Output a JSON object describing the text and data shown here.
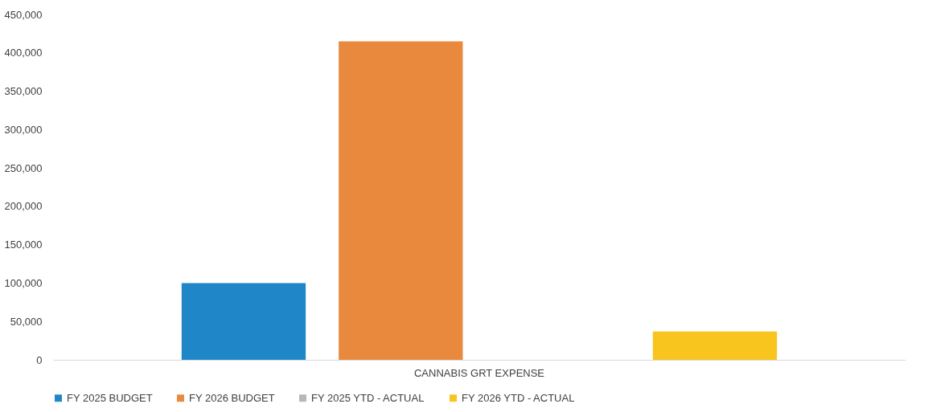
{
  "chart_data": {
    "type": "bar",
    "categories": [
      "CANNABIS GRT EXPENSE"
    ],
    "series": [
      {
        "name": "FY 2025 BUDGET",
        "color": "#1f86c8",
        "values": [
          100000
        ]
      },
      {
        "name": "FY 2026 BUDGET",
        "color": "#e8893d",
        "values": [
          415000
        ]
      },
      {
        "name": "FY 2025 YTD - ACTUAL",
        "color": "#b7b7b7",
        "values": [
          0
        ]
      },
      {
        "name": "FY 2026 YTD - ACTUAL",
        "color": "#f8c41e",
        "values": [
          37000
        ]
      }
    ],
    "ylim": [
      0,
      450000
    ],
    "yticks": [
      0,
      {
        "value": 50000,
        "label": "50,000"
      },
      {
        "value": 100000,
        "label": "100,000"
      },
      {
        "value": 150000,
        "label": "150,000"
      },
      {
        "value": 200000,
        "label": "200,000"
      },
      {
        "value": 250000,
        "label": "250,000"
      },
      {
        "value": 300000,
        "label": "300,000"
      },
      {
        "value": 350000,
        "label": "350,000"
      },
      {
        "value": 400000,
        "label": "400,000"
      },
      {
        "value": 450000,
        "label": "450,000"
      }
    ],
    "grid": false,
    "legend": "bottom"
  }
}
